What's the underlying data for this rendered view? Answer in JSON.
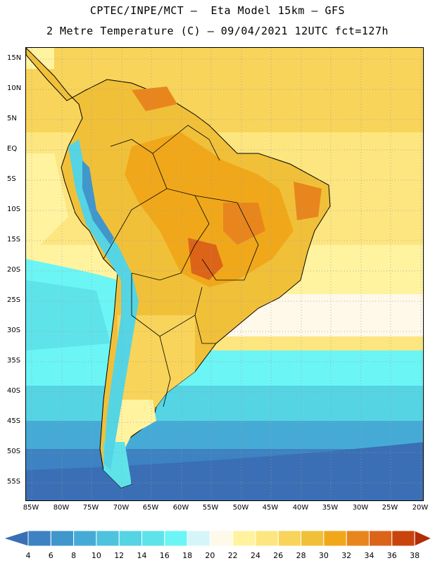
{
  "title_line1": "CPTEC/INPE/MCT –  Eta Model 15km – GFS",
  "title_line2": "2 Metre Temperature (C) – 09/04/2021 12UTC fct=127h",
  "lat_labels": [
    "15N",
    "10N",
    "5N",
    "EQ",
    "5S",
    "10S",
    "15S",
    "20S",
    "25S",
    "30S",
    "35S",
    "40S",
    "45S",
    "50S",
    "55S"
  ],
  "lon_labels": [
    "85W",
    "80W",
    "75W",
    "70W",
    "65W",
    "60W",
    "55W",
    "50W",
    "45W",
    "40W",
    "35W",
    "30W",
    "25W",
    "20W"
  ],
  "colorbar": {
    "labels": [
      "4",
      "6",
      "8",
      "10",
      "12",
      "14",
      "16",
      "18",
      "20",
      "22",
      "24",
      "26",
      "28",
      "30",
      "32",
      "34",
      "36",
      "38"
    ],
    "colors": [
      "#3a6fb5",
      "#3d82c2",
      "#3f97cc",
      "#45abd6",
      "#4fc2dd",
      "#55d4e4",
      "#5fe3ea",
      "#6cf5f5",
      "#d6f5fb",
      "#fff9ea",
      "#fff3a0",
      "#fde680",
      "#f8d45a",
      "#f1c039",
      "#f0a81a",
      "#e8861d",
      "#dc6419",
      "#c9440d",
      "#b22c08"
    ]
  }
}
